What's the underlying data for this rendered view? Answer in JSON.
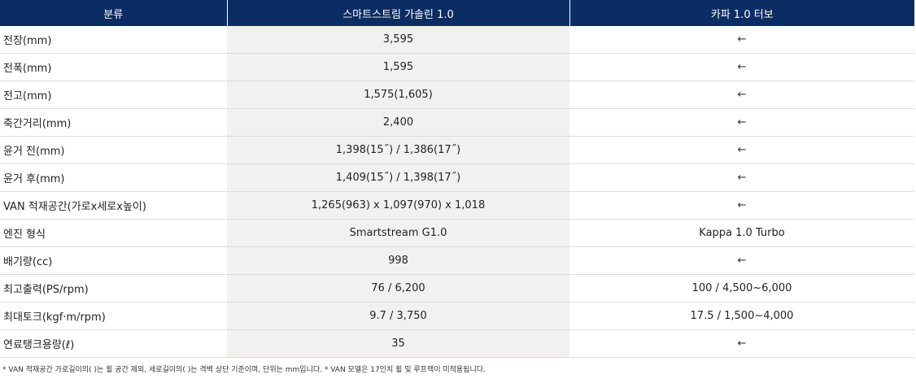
{
  "table": {
    "headers": {
      "category": "분류",
      "smartstream": "스마트스트림 가솔린 1.0",
      "kappa": "카파 1.0 터보"
    },
    "rows": [
      {
        "label": "전장(mm)",
        "smartstream": "3,595",
        "kappa": "←"
      },
      {
        "label": "전폭(mm)",
        "smartstream": "1,595",
        "kappa": "←"
      },
      {
        "label": "전고(mm)",
        "smartstream": "1,575(1,605)",
        "kappa": "←"
      },
      {
        "label": "축간거리(mm)",
        "smartstream": "2,400",
        "kappa": "←"
      },
      {
        "label": "윤거 전(mm)",
        "smartstream": "1,398(15˝) / 1,386(17˝)",
        "kappa": "←"
      },
      {
        "label": "윤거 후(mm)",
        "smartstream": "1,409(15˝) / 1,398(17˝)",
        "kappa": "←"
      },
      {
        "label": "VAN 적재공간(가로x세로x높이)",
        "smartstream": "1,265(963) x 1,097(970) x 1,018",
        "kappa": "←"
      },
      {
        "label": "엔진 형식",
        "smartstream": "Smartstream G1.0",
        "kappa": "Kappa 1.0 Turbo"
      },
      {
        "label": "배기량(cc)",
        "smartstream": "998",
        "kappa": "←"
      },
      {
        "label": "최고출력(PS/rpm)",
        "smartstream": "76 / 6,200",
        "kappa": "100 / 4,500~6,000"
      },
      {
        "label": "최대토크(kgf·m/rpm)",
        "smartstream": "9.7 / 3,750",
        "kappa": "17.5 / 1,500~4,000"
      },
      {
        "label": "연료탱크용량(ℓ)",
        "smartstream": "35",
        "kappa": "←"
      }
    ]
  },
  "footnote": "* VAN 적재공간 가로길이의(  )는 휠 공간 제외, 세로길이의(  )는 격벽 상단 기준이며, 단위는 mm입니다.  * VAN 모델은 17인치 휠 및 루프랙이 미적용됩니다."
}
